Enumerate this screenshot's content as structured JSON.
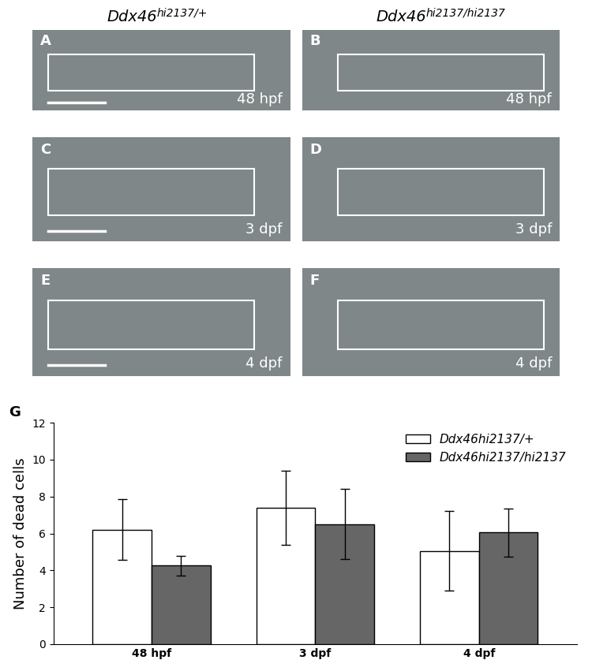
{
  "image_panels": {
    "column_headers": [
      {
        "gene": "Ddx46",
        "genotype": "hi2137/+"
      },
      {
        "gene": "Ddx46",
        "genotype": "hi2137/hi2137"
      }
    ],
    "rows": [
      {
        "labels": [
          "A",
          "B"
        ],
        "stage": "48 hpf"
      },
      {
        "labels": [
          "C",
          "D"
        ],
        "stage": "3 dpf"
      },
      {
        "labels": [
          "E",
          "F"
        ],
        "stage": "4 dpf"
      }
    ]
  },
  "chart_label": "G",
  "chart_data": {
    "type": "bar",
    "categories": [
      "48 hpf",
      "3 dpf",
      "4 dpf"
    ],
    "y_label": "Number of dead cells",
    "ylim": [
      0,
      12
    ],
    "yticks": [
      0,
      2,
      4,
      6,
      8,
      10,
      12
    ],
    "legend": "upper right",
    "series": [
      {
        "name": "Ddx46hi2137/+",
        "color": "#ffffff",
        "values": [
          6.2,
          7.4,
          5.05
        ],
        "errors": [
          1.65,
          2.0,
          2.15
        ]
      },
      {
        "name": "Ddx46hi2137/hi2137",
        "color": "#666666",
        "values": [
          4.25,
          6.5,
          6.05
        ],
        "errors": [
          0.55,
          1.9,
          1.3
        ]
      }
    ]
  }
}
